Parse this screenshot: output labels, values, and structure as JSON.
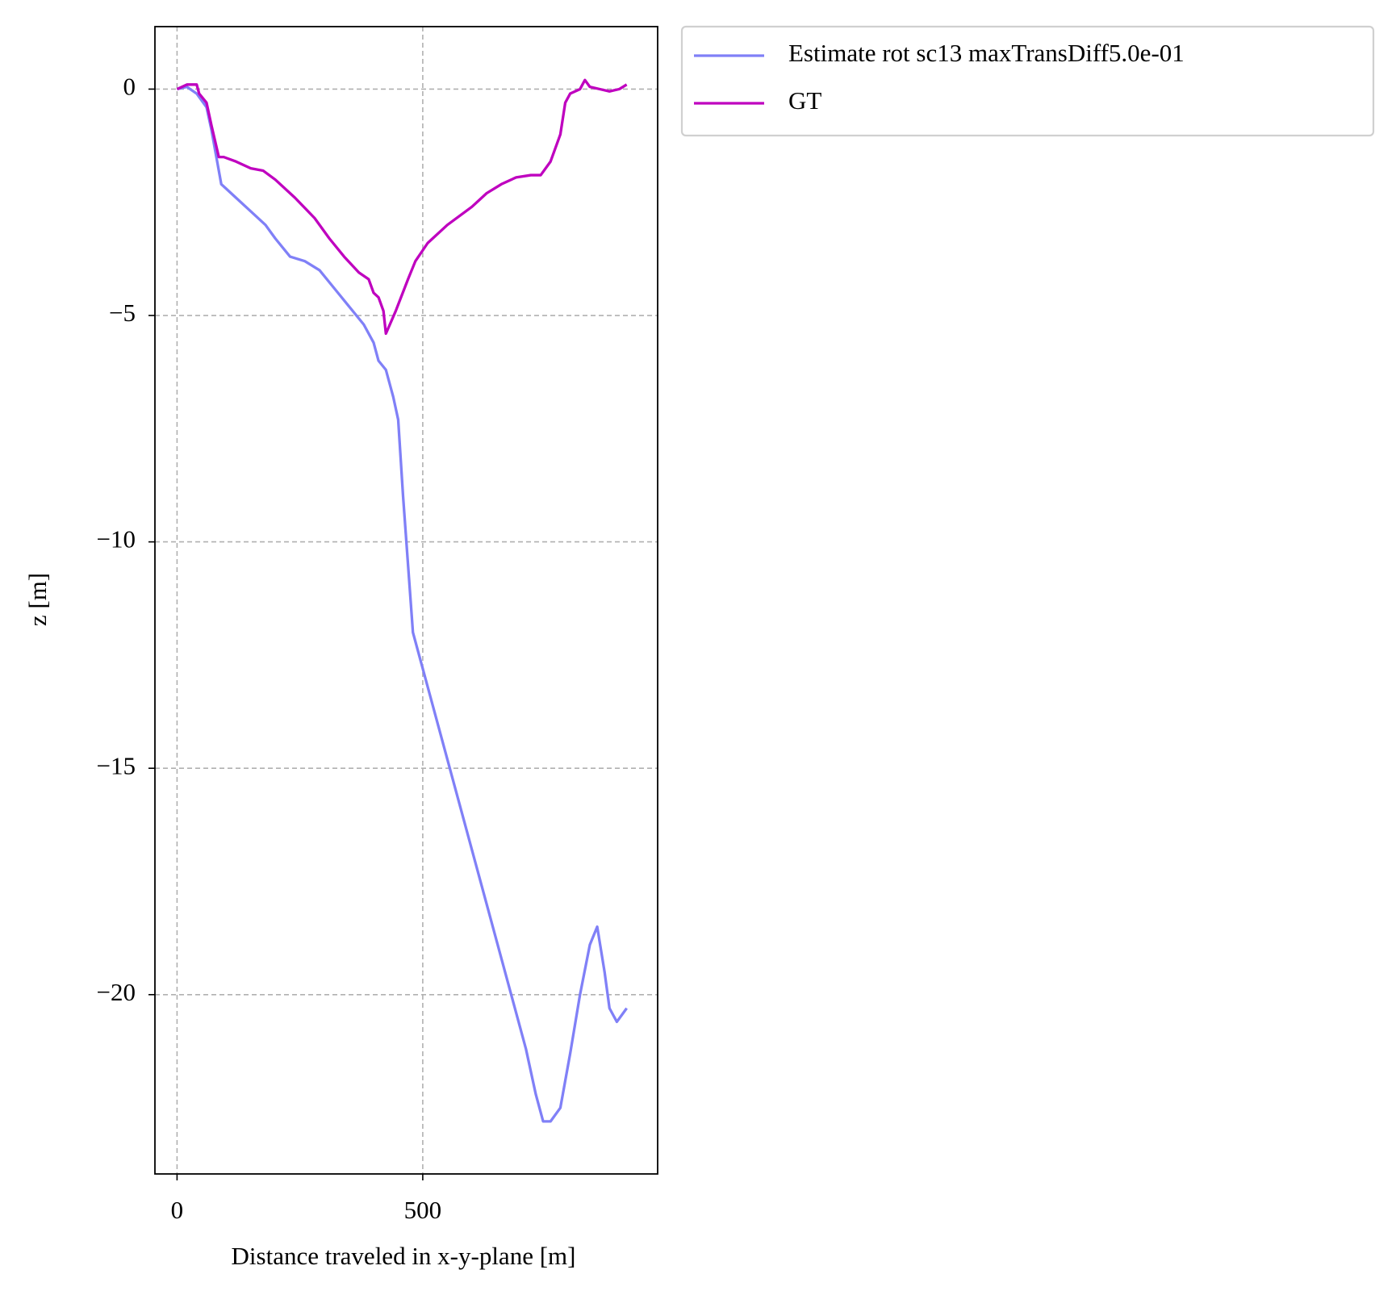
{
  "chart_data": {
    "type": "line",
    "xlabel": "Distance traveled in x-y-plane [m]",
    "ylabel": "z [m]",
    "xlim": [
      -45,
      978
    ],
    "ylim": [
      -23.96,
      1.38
    ],
    "xticks": [
      0,
      500
    ],
    "yticks": [
      0,
      {
        "value": -5,
        "label": "−5"
      },
      {
        "value": -10,
        "label": "−10"
      },
      {
        "value": -15,
        "label": "−15"
      },
      {
        "value": -20,
        "label": "−20"
      }
    ],
    "grid": true,
    "legend": "outside upper right",
    "series": [
      {
        "name": "Estimate rot sc13 maxTransDiff5.0e-01",
        "color": "#8080f7",
        "x": [
          0,
          20,
          40,
          60,
          70,
          80,
          90,
          100,
          120,
          150,
          180,
          200,
          230,
          260,
          290,
          320,
          350,
          380,
          400,
          410,
          425,
          440,
          450,
          460,
          480,
          500,
          520,
          560,
          600,
          640,
          680,
          710,
          730,
          745,
          760,
          780,
          800,
          820,
          840,
          855,
          870,
          880,
          895,
          915
        ],
        "values": [
          0,
          0.05,
          -0.1,
          -0.4,
          -0.9,
          -1.5,
          -2.1,
          -2.2,
          -2.4,
          -2.7,
          -3.0,
          -3.3,
          -3.7,
          -3.8,
          -4.0,
          -4.4,
          -4.8,
          -5.2,
          -5.6,
          -6.0,
          -6.2,
          -6.8,
          -7.3,
          -9.0,
          -12.0,
          -12.8,
          -13.6,
          -15.2,
          -16.8,
          -18.4,
          -20.0,
          -21.2,
          -22.2,
          -22.8,
          -22.8,
          -22.5,
          -21.3,
          -20.0,
          -18.9,
          -18.5,
          -19.5,
          -20.3,
          -20.6,
          -20.3
        ]
      },
      {
        "name": "GT",
        "color": "#bf00bf",
        "x": [
          0,
          20,
          40,
          45,
          60,
          70,
          85,
          95,
          120,
          150,
          175,
          200,
          240,
          280,
          310,
          340,
          370,
          390,
          400,
          410,
          420,
          425,
          445,
          470,
          485,
          510,
          550,
          600,
          630,
          660,
          690,
          720,
          740,
          760,
          780,
          790,
          800,
          820,
          830,
          840,
          860,
          880,
          900,
          915
        ],
        "values": [
          0,
          0.1,
          0.1,
          -0.1,
          -0.3,
          -0.8,
          -1.5,
          -1.5,
          -1.6,
          -1.75,
          -1.8,
          -2.0,
          -2.4,
          -2.85,
          -3.3,
          -3.7,
          -4.05,
          -4.2,
          -4.5,
          -4.6,
          -4.9,
          -5.4,
          -4.9,
          -4.2,
          -3.8,
          -3.4,
          -3.0,
          -2.6,
          -2.3,
          -2.1,
          -1.95,
          -1.9,
          -1.9,
          -1.6,
          -1.0,
          -0.3,
          -0.1,
          0,
          0.2,
          0.05,
          0,
          -0.05,
          0,
          0.1
        ]
      }
    ]
  }
}
